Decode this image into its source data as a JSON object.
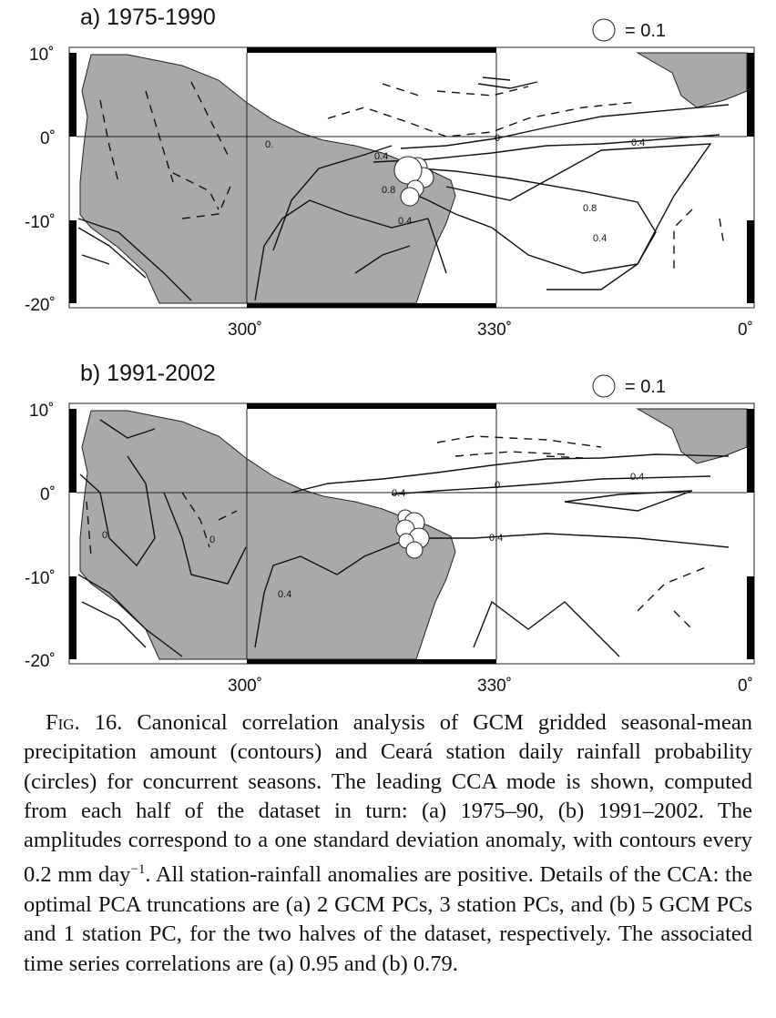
{
  "chart_data": [
    {
      "type": "contour-map",
      "title": "a) 1975-1990",
      "legend": "= 0.1",
      "legend_placement": "top-right",
      "x_ticks": [
        "300˚",
        "330˚",
        "0˚"
      ],
      "y_ticks": [
        "10˚",
        "0˚",
        "-10˚",
        "-20˚"
      ],
      "xlim_deg_east": [
        280,
        360
      ],
      "ylim_deg_north": [
        -20,
        10
      ],
      "contour_labels": [
        "0.",
        "0.4",
        "0.8",
        "0",
        "0.4",
        "0.8",
        "0.4",
        "0.4"
      ],
      "contour_interval": 0.2,
      "station_circle_count": 5
    },
    {
      "type": "contour-map",
      "title": "b) 1991-2002",
      "legend": "= 0.1",
      "legend_placement": "top-right",
      "x_ticks": [
        "300˚",
        "330˚",
        "0˚"
      ],
      "y_ticks": [
        "10˚",
        "0˚",
        "-10˚",
        "-20˚"
      ],
      "xlim_deg_east": [
        280,
        360
      ],
      "ylim_deg_north": [
        -20,
        10
      ],
      "contour_labels": [
        "0",
        "0",
        "0.4",
        "0",
        "0.4",
        "0.4",
        "0.4"
      ],
      "contour_interval": 0.2,
      "station_circle_count": 6
    }
  ],
  "caption": {
    "fig": "Fig. 16.",
    "text": " Canonical correlation analysis of GCM gridded seasonal-mean precipitation amount (contours) and Ceará station daily rainfall probability (circles) for concurrent seasons. The leading CCA mode is shown, computed from each half of the dataset in turn: (a) 1975–90, (b) 1991–2002. The amplitudes correspond to a one standard deviation anomaly, with contours every 0.2 mm day",
    "sup": "−1",
    "text2": ". All station-rainfall anomalies are positive. Details of the CCA: the optimal PCA truncations are (a) 2 GCM PCs, 3 station PCs, and (b) 5 GCM PCs and 1 station PC, for the two halves of the dataset, respectively. The associated time series correlations are (a) 0.95 and (b) 0.79."
  }
}
